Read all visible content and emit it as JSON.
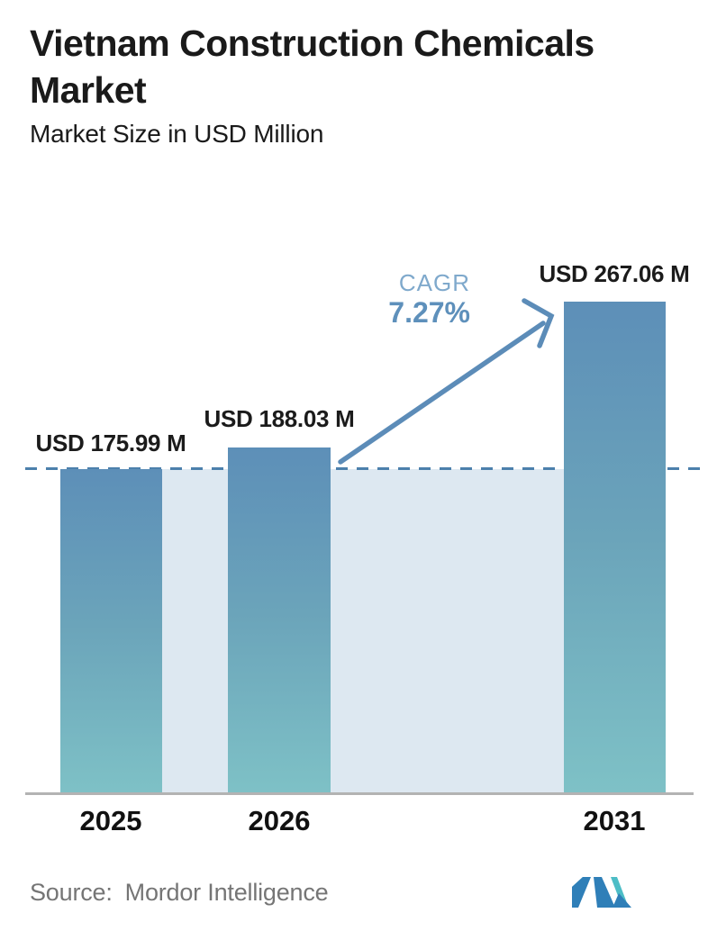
{
  "title": {
    "line1": "Vietnam Construction Chemicals",
    "line2": "Market"
  },
  "subtitle": "Market Size in USD Million",
  "cagr": {
    "label": "CAGR",
    "value": "7.27%"
  },
  "source": {
    "label": "Source:",
    "name": "Mordor Intelligence"
  },
  "colors": {
    "bar_gradient_top": "#5d8fb8",
    "bar_gradient_bottom": "#7ec1c6",
    "band_fill": "#dde8f1",
    "dashed_line": "#4c80ac",
    "arrow": "#5c8cb8",
    "cagr_label": "#7fa9cc",
    "cagr_value": "#5e90bb",
    "baseline": "#b3b3b3",
    "text": "#1a1a1a",
    "source_text": "#757575",
    "logo_blue": "#2f7fb8",
    "logo_teal": "#4dbdc6"
  },
  "chart_data": {
    "type": "bar",
    "title": "Vietnam Construction Chemicals Market",
    "subtitle": "Market Size in USD Million",
    "unit": "USD Million",
    "categories": [
      "2025",
      "2026",
      "2031"
    ],
    "values": [
      175.99,
      188.03,
      267.06
    ],
    "bar_labels": [
      "USD 175.99 M",
      "USD 188.03 M",
      "USD 267.06 M"
    ],
    "cagr_percent": 7.27,
    "dashed_reference_line_value": 175.99,
    "ylim": [
      0,
      280
    ],
    "grid": false,
    "legend": false,
    "annotations": {
      "growth_arrow": "from 2026 bar top to 2031 bar top",
      "cagr_text": "CAGR 7.27%"
    }
  }
}
